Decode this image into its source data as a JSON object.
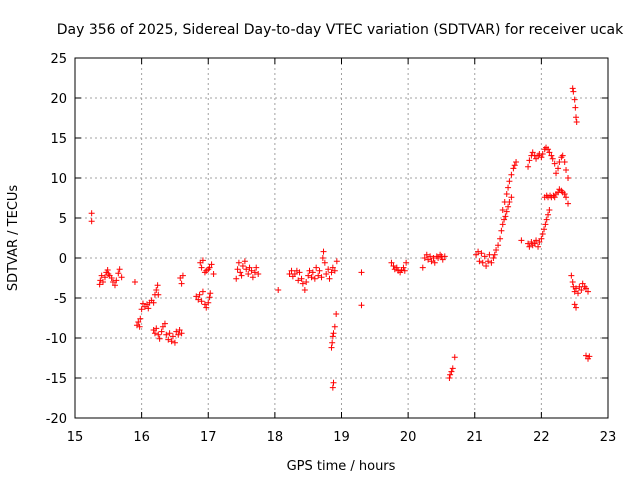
{
  "chart_data": {
    "type": "scatter",
    "title": "Day 356 of 2025, Sidereal Day-to-day VTEC variation (SDTVAR) for receiver ucak",
    "xlabel": "GPS time / hours",
    "ylabel": "SDTVAR / TECUs",
    "xlim": [
      15,
      23
    ],
    "ylim": [
      -20,
      25
    ],
    "xticks": [
      15,
      16,
      17,
      18,
      19,
      20,
      21,
      22,
      23
    ],
    "yticks": [
      -20,
      -15,
      -10,
      -5,
      0,
      5,
      10,
      15,
      20,
      25
    ],
    "grid": true,
    "marker": "+",
    "color": "#ff0000",
    "series": [
      {
        "name": "SDTVAR",
        "points": [
          [
            15.25,
            5.6
          ],
          [
            15.25,
            4.6
          ],
          [
            15.37,
            -3.3
          ],
          [
            15.38,
            -2.8
          ],
          [
            15.4,
            -2.2
          ],
          [
            15.42,
            -3.0
          ],
          [
            15.45,
            -2.4
          ],
          [
            15.47,
            -1.8
          ],
          [
            15.49,
            -1.5
          ],
          [
            15.5,
            -2.0
          ],
          [
            15.52,
            -2.2
          ],
          [
            15.55,
            -2.5
          ],
          [
            15.57,
            -3.0
          ],
          [
            15.6,
            -3.4
          ],
          [
            15.62,
            -2.8
          ],
          [
            15.65,
            -1.9
          ],
          [
            15.67,
            -1.4
          ],
          [
            15.7,
            -2.4
          ],
          [
            15.9,
            -3.0
          ],
          [
            15.93,
            -8.4
          ],
          [
            15.95,
            -8.0
          ],
          [
            15.97,
            -8.6
          ],
          [
            15.98,
            -7.6
          ],
          [
            16.0,
            -6.4
          ],
          [
            16.02,
            -5.7
          ],
          [
            16.05,
            -6.1
          ],
          [
            16.08,
            -5.8
          ],
          [
            16.1,
            -6.3
          ],
          [
            16.12,
            -5.6
          ],
          [
            16.15,
            -5.3
          ],
          [
            16.18,
            -5.6
          ],
          [
            16.2,
            -4.6
          ],
          [
            16.22,
            -4.0
          ],
          [
            16.24,
            -3.4
          ],
          [
            16.25,
            -4.6
          ],
          [
            16.18,
            -9.0
          ],
          [
            16.2,
            -9.4
          ],
          [
            16.22,
            -8.8
          ],
          [
            16.25,
            -9.6
          ],
          [
            16.27,
            -10.1
          ],
          [
            16.3,
            -9.2
          ],
          [
            16.32,
            -8.6
          ],
          [
            16.35,
            -8.2
          ],
          [
            16.37,
            -9.6
          ],
          [
            16.4,
            -10.2
          ],
          [
            16.42,
            -9.4
          ],
          [
            16.45,
            -10.4
          ],
          [
            16.47,
            -9.8
          ],
          [
            16.5,
            -10.6
          ],
          [
            16.52,
            -9.2
          ],
          [
            16.55,
            -9.6
          ],
          [
            16.57,
            -9.0
          ],
          [
            16.6,
            -9.4
          ],
          [
            16.58,
            -2.5
          ],
          [
            16.6,
            -3.2
          ],
          [
            16.62,
            -2.2
          ],
          [
            16.82,
            -4.8
          ],
          [
            16.85,
            -5.2
          ],
          [
            16.87,
            -4.6
          ],
          [
            16.9,
            -5.4
          ],
          [
            16.92,
            -4.2
          ],
          [
            16.95,
            -5.8
          ],
          [
            16.97,
            -6.2
          ],
          [
            17.0,
            -5.6
          ],
          [
            17.02,
            -4.9
          ],
          [
            17.03,
            -4.4
          ],
          [
            16.88,
            -0.6
          ],
          [
            16.9,
            -1.2
          ],
          [
            16.92,
            -0.3
          ],
          [
            16.95,
            -1.8
          ],
          [
            16.97,
            -1.6
          ],
          [
            17.0,
            -1.4
          ],
          [
            17.02,
            -1.2
          ],
          [
            17.05,
            -0.8
          ],
          [
            17.08,
            -2.0
          ],
          [
            17.42,
            -2.6
          ],
          [
            17.44,
            -1.4
          ],
          [
            17.46,
            -0.6
          ],
          [
            17.48,
            -1.8
          ],
          [
            17.5,
            -2.2
          ],
          [
            17.52,
            -1.0
          ],
          [
            17.55,
            -0.4
          ],
          [
            17.57,
            -1.4
          ],
          [
            17.6,
            -2.0
          ],
          [
            17.62,
            -1.2
          ],
          [
            17.65,
            -1.6
          ],
          [
            17.67,
            -2.4
          ],
          [
            17.7,
            -1.8
          ],
          [
            17.72,
            -1.2
          ],
          [
            17.75,
            -2.0
          ],
          [
            18.05,
            -4.0
          ],
          [
            18.22,
            -2.0
          ],
          [
            18.25,
            -1.6
          ],
          [
            18.27,
            -2.3
          ],
          [
            18.3,
            -2.0
          ],
          [
            18.33,
            -1.6
          ],
          [
            18.35,
            -2.8
          ],
          [
            18.37,
            -1.8
          ],
          [
            18.4,
            -2.6
          ],
          [
            18.42,
            -3.2
          ],
          [
            18.45,
            -4.0
          ],
          [
            18.47,
            -3.0
          ],
          [
            18.5,
            -2.2
          ],
          [
            18.52,
            -1.6
          ],
          [
            18.55,
            -2.4
          ],
          [
            18.57,
            -1.8
          ],
          [
            18.6,
            -2.6
          ],
          [
            18.62,
            -1.2
          ],
          [
            18.65,
            -2.2
          ],
          [
            18.67,
            -1.6
          ],
          [
            18.7,
            -2.4
          ],
          [
            18.72,
            0.0
          ],
          [
            18.73,
            0.8
          ],
          [
            18.75,
            -0.6
          ],
          [
            18.77,
            -2.0
          ],
          [
            18.8,
            -1.4
          ],
          [
            18.82,
            -2.6
          ],
          [
            18.85,
            -1.8
          ],
          [
            18.87,
            -1.2
          ],
          [
            18.9,
            -1.6
          ],
          [
            18.93,
            -0.4
          ],
          [
            18.85,
            -11.2
          ],
          [
            18.86,
            -10.6
          ],
          [
            18.87,
            -9.8
          ],
          [
            18.88,
            -9.4
          ],
          [
            18.9,
            -8.6
          ],
          [
            18.92,
            -7.0
          ],
          [
            18.87,
            -16.2
          ],
          [
            18.88,
            -15.6
          ],
          [
            19.3,
            -1.8
          ],
          [
            19.3,
            -5.9
          ],
          [
            19.75,
            -0.6
          ],
          [
            19.78,
            -1.0
          ],
          [
            19.8,
            -1.4
          ],
          [
            19.83,
            -1.2
          ],
          [
            19.85,
            -1.6
          ],
          [
            19.88,
            -1.8
          ],
          [
            19.9,
            -1.5
          ],
          [
            19.93,
            -1.2
          ],
          [
            19.95,
            -1.6
          ],
          [
            19.97,
            -0.6
          ],
          [
            20.22,
            -1.2
          ],
          [
            20.25,
            0.0
          ],
          [
            20.28,
            0.4
          ],
          [
            20.3,
            -0.2
          ],
          [
            20.33,
            0.2
          ],
          [
            20.35,
            -0.4
          ],
          [
            20.38,
            0.0
          ],
          [
            20.4,
            -0.6
          ],
          [
            20.43,
            0.2
          ],
          [
            20.45,
            0.0
          ],
          [
            20.48,
            0.4
          ],
          [
            20.5,
            0.2
          ],
          [
            20.52,
            -0.2
          ],
          [
            20.55,
            0.2
          ],
          [
            20.62,
            -15.0
          ],
          [
            20.63,
            -14.6
          ],
          [
            20.65,
            -14.2
          ],
          [
            20.67,
            -13.8
          ],
          [
            20.7,
            -12.4
          ],
          [
            21.02,
            0.4
          ],
          [
            21.05,
            0.8
          ],
          [
            21.07,
            -0.4
          ],
          [
            21.1,
            0.6
          ],
          [
            21.12,
            -0.6
          ],
          [
            21.15,
            0.2
          ],
          [
            21.17,
            -1.0
          ],
          [
            21.2,
            -0.4
          ],
          [
            21.22,
            0.4
          ],
          [
            21.25,
            -0.6
          ],
          [
            21.28,
            0.0
          ],
          [
            21.3,
            0.4
          ],
          [
            21.32,
            1.0
          ],
          [
            21.35,
            1.6
          ],
          [
            21.38,
            2.4
          ],
          [
            21.4,
            3.4
          ],
          [
            21.42,
            4.2
          ],
          [
            21.44,
            4.8
          ],
          [
            21.46,
            5.2
          ],
          [
            21.48,
            5.8
          ],
          [
            21.5,
            6.4
          ],
          [
            21.52,
            7.0
          ],
          [
            21.55,
            7.6
          ],
          [
            21.42,
            6.0
          ],
          [
            21.45,
            7.0
          ],
          [
            21.48,
            8.0
          ],
          [
            21.5,
            8.8
          ],
          [
            21.52,
            9.6
          ],
          [
            21.55,
            10.4
          ],
          [
            21.58,
            11.2
          ],
          [
            21.6,
            11.6
          ],
          [
            21.62,
            12.0
          ],
          [
            21.7,
            2.2
          ],
          [
            21.8,
            1.8
          ],
          [
            21.82,
            1.4
          ],
          [
            21.85,
            2.0
          ],
          [
            21.87,
            1.6
          ],
          [
            21.9,
            1.8
          ],
          [
            21.92,
            2.2
          ],
          [
            21.95,
            1.4
          ],
          [
            21.97,
            2.0
          ],
          [
            22.0,
            2.4
          ],
          [
            22.02,
            3.0
          ],
          [
            22.04,
            3.6
          ],
          [
            22.06,
            4.2
          ],
          [
            22.08,
            4.8
          ],
          [
            22.1,
            5.4
          ],
          [
            22.12,
            6.0
          ],
          [
            21.8,
            11.4
          ],
          [
            21.82,
            12.2
          ],
          [
            21.85,
            12.8
          ],
          [
            21.87,
            13.2
          ],
          [
            21.9,
            12.8
          ],
          [
            21.92,
            12.4
          ],
          [
            21.95,
            12.8
          ],
          [
            21.97,
            13.0
          ],
          [
            22.0,
            12.6
          ],
          [
            22.02,
            13.0
          ],
          [
            22.05,
            13.6
          ],
          [
            22.07,
            13.8
          ],
          [
            22.1,
            13.6
          ],
          [
            22.12,
            13.2
          ],
          [
            22.15,
            12.8
          ],
          [
            22.17,
            12.4
          ],
          [
            22.2,
            11.8
          ],
          [
            22.22,
            10.6
          ],
          [
            22.25,
            11.2
          ],
          [
            22.27,
            12.0
          ],
          [
            22.3,
            12.6
          ],
          [
            22.32,
            12.8
          ],
          [
            22.35,
            12.0
          ],
          [
            22.37,
            11.0
          ],
          [
            22.4,
            10.0
          ],
          [
            22.05,
            7.6
          ],
          [
            22.08,
            7.8
          ],
          [
            22.1,
            7.6
          ],
          [
            22.13,
            7.8
          ],
          [
            22.15,
            7.6
          ],
          [
            22.18,
            7.8
          ],
          [
            22.2,
            7.6
          ],
          [
            22.22,
            8.0
          ],
          [
            22.25,
            8.2
          ],
          [
            22.27,
            8.6
          ],
          [
            22.3,
            8.4
          ],
          [
            22.32,
            8.2
          ],
          [
            22.35,
            8.0
          ],
          [
            22.37,
            7.6
          ],
          [
            22.4,
            6.8
          ],
          [
            22.47,
            21.2
          ],
          [
            22.48,
            20.8
          ],
          [
            22.5,
            19.8
          ],
          [
            22.51,
            18.8
          ],
          [
            22.52,
            17.6
          ],
          [
            22.53,
            17.0
          ],
          [
            22.45,
            -2.2
          ],
          [
            22.47,
            -3.0
          ],
          [
            22.48,
            -3.6
          ],
          [
            22.5,
            -4.2
          ],
          [
            22.52,
            -3.8
          ],
          [
            22.55,
            -4.4
          ],
          [
            22.57,
            -3.6
          ],
          [
            22.6,
            -4.0
          ],
          [
            22.62,
            -3.2
          ],
          [
            22.65,
            -3.6
          ],
          [
            22.67,
            -3.8
          ],
          [
            22.7,
            -4.2
          ],
          [
            22.5,
            -5.8
          ],
          [
            22.52,
            -6.2
          ],
          [
            22.67,
            -12.2
          ],
          [
            22.7,
            -12.6
          ],
          [
            22.72,
            -12.3
          ]
        ]
      }
    ]
  }
}
